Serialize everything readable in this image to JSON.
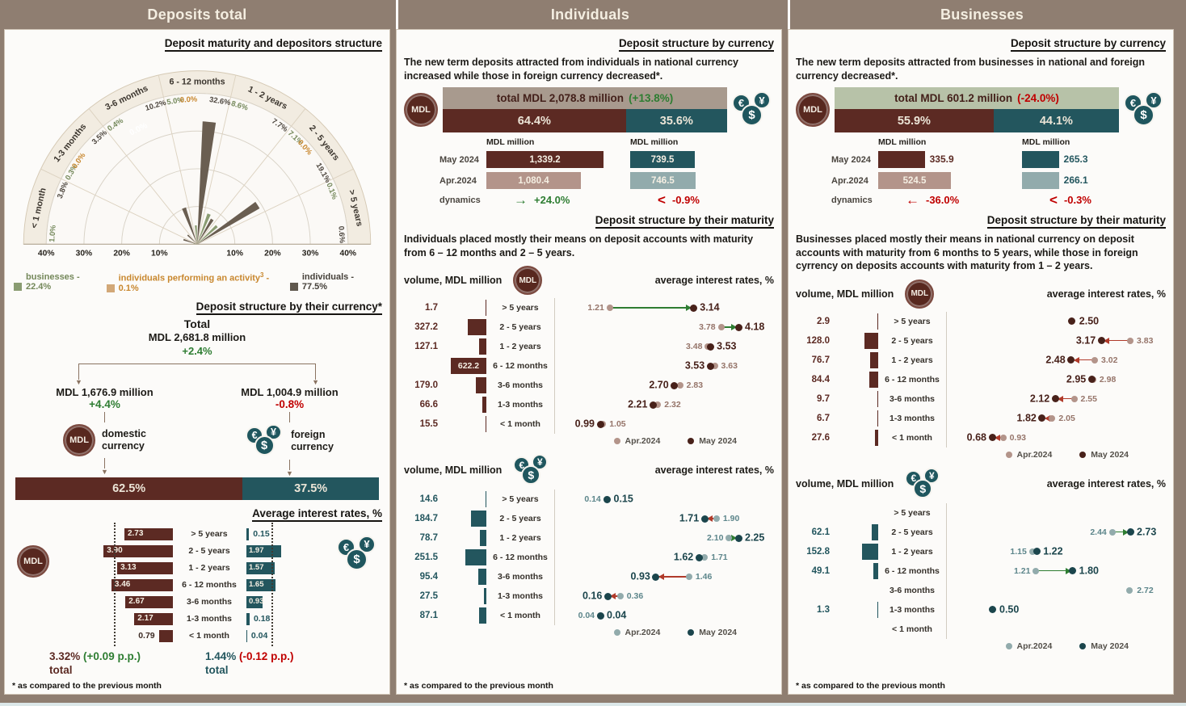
{
  "page": {
    "headers": [
      "Deposits total",
      "Individuals",
      "Businesses"
    ],
    "footnote": "* as compared to the previous month",
    "colors": {
      "header_bg": "#8f7e71",
      "maroon": "#5c2a23",
      "teal": "#23565e",
      "green": "#2e7d32",
      "red": "#c00000"
    }
  },
  "icons": {
    "mdl": "MDL",
    "fx_euro": "€",
    "fx_yen": "¥",
    "fx_dollar": "$"
  },
  "panel_total": {
    "maturity_title": "Deposit maturity and depositors structure",
    "currency_title": "Deposit structure by their currency*",
    "rates_title": "Average interest rates, %",
    "tree": {
      "total_label": "Total",
      "total_amount": "MDL 2,681.8 million",
      "total_change": "+2.4%",
      "domestic_amount": "MDL 1,676.9 million",
      "domestic_change": "+4.4%",
      "domestic_label": "domestic currency",
      "foreign_amount": "MDL 1,004.9 million",
      "foreign_change": "-0.8%",
      "foreign_label": "foreign currency",
      "split_domestic": "62.5%",
      "split_foreign": "37.5%"
    },
    "totals": {
      "national_total": "3.32%",
      "national_change": "(+0.09 p.p.)",
      "foreign_total": "1.44%",
      "foreign_change": "(-0.12 p.p.)",
      "word": "total"
    }
  },
  "panel_individuals": {
    "currency_title": "Deposit structure by currency",
    "currency_text": "The new term deposits attracted from individuals in national currency increased while those in foreign currency decreased*.",
    "maturity_title": "Deposit structure by their maturity",
    "maturity_text": "Individuals placed mostly their means on deposit accounts with maturity from 6 – 12 months and 2 – 5 years.",
    "volume_label": "volume, MDL million",
    "rates_label": "average interest rates, %"
  },
  "panel_businesses": {
    "currency_title": "Deposit structure by currency",
    "currency_text": "The new term deposits attracted from businesses in national and foreign currency decreased*.",
    "maturity_title": "Deposit structure by their maturity",
    "maturity_text": "Businesses placed mostly their means in national currency on deposit accounts with maturity from 6 months to 5 years, while those in foreign cyrrency on deposits accounts with maturity from 1 – 2 years.",
    "volume_label": "volume, MDL million",
    "rates_label": "average interest rates, %"
  },
  "chart_data": {
    "maturity_polar": {
      "type": "polar-bar",
      "title": "Deposit maturity and depositors structure",
      "max_pct": 40,
      "axis_ticks": [
        "40%",
        "30%",
        "20%",
        "10%",
        "10%",
        "20%",
        "30%",
        "40%"
      ],
      "categories": [
        "< 1 month",
        "1-3 months",
        "3-6 months",
        "6 - 12 months",
        "1 - 2 years",
        "2 - 5 years",
        "> 5 years"
      ],
      "series": [
        {
          "name": "businesses",
          "color": "#8a9c72",
          "values": [
            1.0,
            0.3,
            0.4,
            5.0,
            8.6,
            7.1,
            0.1
          ],
          "labels": [
            "1.0%",
            "0.3%",
            "0.4%",
            "5.0%",
            "8.6%",
            "7.1%",
            "0.1%"
          ],
          "label_color": "#74885a"
        },
        {
          "name": "individuals performing an activity",
          "color": "#d49a55",
          "values": [
            null,
            0.0,
            0.0,
            0.0,
            null,
            0.0,
            null
          ],
          "labels": [
            null,
            "0.0%",
            null,
            "0.0%",
            null,
            "0.0%",
            null
          ],
          "label_color": "#c8872e"
        },
        {
          "name": "individuals",
          "color": "#6a5e51",
          "values": [
            3.8,
            3.5,
            10.2,
            32.6,
            7.7,
            19.1,
            0.6
          ],
          "labels": [
            "3.8%",
            "3.5%",
            "10.2%",
            "32.6%",
            "7.7%",
            "19.1%",
            "0.6%"
          ],
          "label_color": "#4d463e"
        }
      ],
      "inner_label": "0.0%",
      "legend": [
        {
          "label": "businesses - 22.4%",
          "sup": "",
          "suffix": "",
          "color": "#8a9c72",
          "text_color": "#74885a"
        },
        {
          "label": "individuals performing an activity",
          "sup": "3",
          "suffix": " - 0.1%",
          "color": "#d2a878",
          "text_color": "#c8872e"
        },
        {
          "label": "individuals - 77.5%",
          "sup": "",
          "suffix": "",
          "color": "#5f574d",
          "text_color": "#46413a"
        }
      ]
    },
    "avg_rates_total": {
      "type": "bar",
      "categories": [
        "> 5 years",
        "2 - 5 years",
        "1 - 2 years",
        "6 - 12 months",
        "3-6 months",
        "1-3 months",
        "< 1 month"
      ],
      "national": [
        "2.73",
        "3.90",
        "3.13",
        "3.46",
        "2.67",
        "2.17",
        "0.79"
      ],
      "foreign": [
        "0.15",
        "1.97",
        "1.57",
        "1.65",
        "0.93",
        "0.18",
        "0.04"
      ],
      "national_total": 3.32,
      "foreign_total": 1.44
    },
    "ind_currency": {
      "type": "bar",
      "total_text": "total MDL 2,078.8 million",
      "total_change": "(+13.8%)",
      "change_dir": "up",
      "total_bg": "#a89a8e",
      "national_share": "64.4%",
      "foreign_share": "35.6%",
      "unit": "MDL million",
      "row_labels": [
        "May 2024",
        "Apr.2024",
        "dynamics"
      ],
      "national": {
        "may": "1,339.2",
        "apr": "1,080.4",
        "dyn": "+24.0%",
        "arrow": "→",
        "dir": "up"
      },
      "foreign": {
        "may": "739.5",
        "apr": "746.5",
        "dyn": "-0.9%",
        "arrow": "<",
        "dir": "down"
      }
    },
    "bus_currency": {
      "type": "bar",
      "total_text": "total MDL 601.2 million",
      "total_change": "(-24.0%)",
      "change_dir": "down",
      "total_bg": "#b7c2a8",
      "national_share": "55.9%",
      "foreign_share": "44.1%",
      "unit": "MDL million",
      "row_labels": [
        "May 2024",
        "Apr.2024",
        "dynamics"
      ],
      "national": {
        "may": "335.9",
        "apr": "524.5",
        "dyn": "-36.0%",
        "arrow": "←",
        "dir": "down"
      },
      "foreign": {
        "may": "265.3",
        "apr": "266.1",
        "dyn": "-0.3%",
        "arrow": "<",
        "dir": "down"
      }
    },
    "ind_nat_maturity": {
      "type": "bar+dumbbell",
      "currency": "national",
      "categories": [
        "> 5 years",
        "2 - 5 years",
        "1 - 2 years",
        "6 - 12 months",
        "3-6 months",
        "1-3 months",
        "< 1 month"
      ],
      "volumes": [
        "1.7",
        "327.2",
        "127.1",
        "622.2",
        "179.0",
        "66.6",
        "15.5"
      ],
      "apr": [
        "1.21",
        "3.78",
        "3.48",
        "3.63",
        "2.83",
        "2.32",
        "1.05"
      ],
      "may": [
        "3.14",
        "4.18",
        "3.53",
        "3.53",
        "2.70",
        "2.21",
        "0.99"
      ],
      "legend": [
        "Apr.2024",
        "May 2024"
      ]
    },
    "ind_for_maturity": {
      "type": "bar+dumbbell",
      "currency": "foreign",
      "categories": [
        "> 5 years",
        "2 - 5 years",
        "1 - 2 years",
        "6 - 12 months",
        "3-6 months",
        "1-3 months",
        "< 1 month"
      ],
      "volumes": [
        "14.6",
        "184.7",
        "78.7",
        "251.5",
        "95.4",
        "27.5",
        "87.1"
      ],
      "apr": [
        "0.14",
        "1.90",
        "2.10",
        "1.71",
        "1.46",
        "0.36",
        "0.04"
      ],
      "may": [
        "0.15",
        "1.71",
        "2.25",
        "1.62",
        "0.93",
        "0.16",
        "0.04"
      ],
      "legend": [
        "Apr.2024",
        "May 2024"
      ]
    },
    "bus_nat_maturity": {
      "type": "bar+dumbbell",
      "currency": "national",
      "categories": [
        "> 5 years",
        "2 - 5 years",
        "1 - 2 years",
        "6 - 12 months",
        "3-6 months",
        "1-3 months",
        "< 1 month"
      ],
      "volumes": [
        "2.9",
        "128.0",
        "76.7",
        "84.4",
        "9.7",
        "6.7",
        "27.6"
      ],
      "apr": [
        null,
        "3.83",
        "3.02",
        "2.98",
        "2.55",
        "2.05",
        "0.93"
      ],
      "may": [
        "2.50",
        "3.17",
        "2.48",
        "2.95",
        "2.12",
        "1.82",
        "0.68"
      ],
      "legend": [
        "Apr.2024",
        "May 2024"
      ]
    },
    "bus_for_maturity": {
      "type": "bar+dumbbell",
      "currency": "foreign",
      "categories": [
        "> 5 years",
        "2 - 5 years",
        "1 - 2 years",
        "6 - 12 months",
        "3-6 months",
        "1-3 months",
        "< 1 month"
      ],
      "volumes": [
        null,
        "62.1",
        "152.8",
        "49.1",
        null,
        "1.3",
        null
      ],
      "apr": [
        null,
        "2.44",
        "1.15",
        "1.21",
        "2.72",
        null,
        null
      ],
      "may": [
        null,
        "2.73",
        "1.22",
        "1.80",
        null,
        "0.50",
        null
      ],
      "legend": [
        "Apr.2024",
        "May 2024"
      ]
    }
  }
}
